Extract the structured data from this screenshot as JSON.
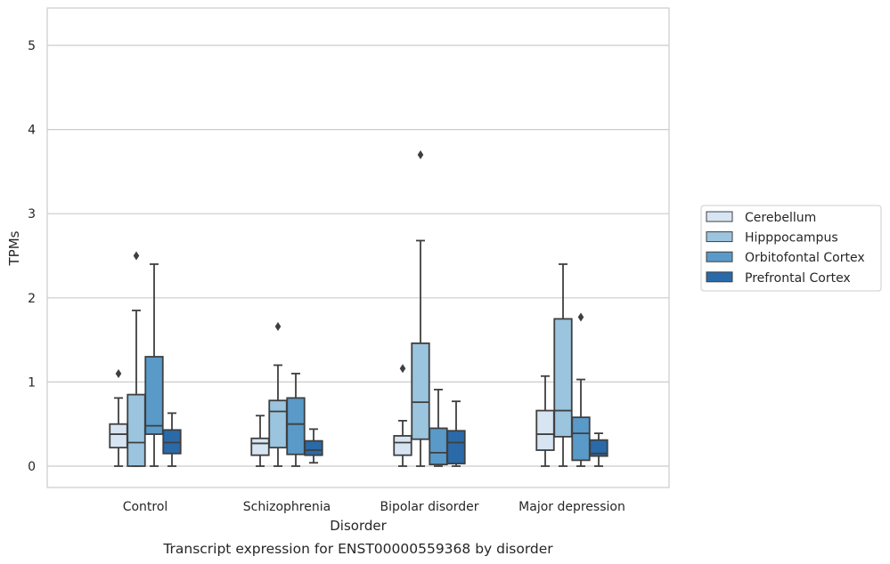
{
  "chart_data": {
    "type": "box",
    "caption": "Transcript expression for ENST00000559368 by disorder",
    "xlabel": "Disorder",
    "ylabel": "TPMs",
    "ylim": [
      -0.25,
      5.45
    ],
    "yticks": [
      0,
      1,
      2,
      3,
      4,
      5
    ],
    "grid": true,
    "legend_position": "right",
    "categories": [
      "Control",
      "Schizophrenia",
      "Bipolar disorder",
      "Major depression"
    ],
    "series": [
      {
        "name": "Cerebellum",
        "color": "#d7e5f3",
        "boxes": [
          {
            "whisker_low": 0.0,
            "q1": 0.22,
            "median": 0.38,
            "q3": 0.5,
            "whisker_high": 0.81,
            "outliers": [
              1.1
            ]
          },
          {
            "whisker_low": 0.0,
            "q1": 0.13,
            "median": 0.27,
            "q3": 0.33,
            "whisker_high": 0.6,
            "outliers": []
          },
          {
            "whisker_low": 0.0,
            "q1": 0.13,
            "median": 0.28,
            "q3": 0.36,
            "whisker_high": 0.54,
            "outliers": [
              1.16
            ]
          },
          {
            "whisker_low": 0.0,
            "q1": 0.19,
            "median": 0.38,
            "q3": 0.66,
            "whisker_high": 1.07,
            "outliers": []
          }
        ]
      },
      {
        "name": "Hipppocampus",
        "color": "#9bc4df",
        "boxes": [
          {
            "whisker_low": 0.0,
            "q1": 0.0,
            "median": 0.28,
            "q3": 0.85,
            "whisker_high": 1.85,
            "outliers": [
              2.5
            ]
          },
          {
            "whisker_low": 0.0,
            "q1": 0.22,
            "median": 0.65,
            "q3": 0.78,
            "whisker_high": 1.2,
            "outliers": [
              1.66
            ]
          },
          {
            "whisker_low": 0.0,
            "q1": 0.32,
            "median": 0.76,
            "q3": 1.46,
            "whisker_high": 2.68,
            "outliers": [
              3.7
            ]
          },
          {
            "whisker_low": 0.0,
            "q1": 0.35,
            "median": 0.66,
            "q3": 1.75,
            "whisker_high": 2.4,
            "outliers": []
          }
        ]
      },
      {
        "name": "Orbitofontal Cortex",
        "color": "#5a9ac9",
        "boxes": [
          {
            "whisker_low": 0.0,
            "q1": 0.38,
            "median": 0.48,
            "q3": 1.3,
            "whisker_high": 2.4,
            "outliers": []
          },
          {
            "whisker_low": 0.0,
            "q1": 0.14,
            "median": 0.5,
            "q3": 0.81,
            "whisker_high": 1.1,
            "outliers": []
          },
          {
            "whisker_low": 0.0,
            "q1": 0.02,
            "median": 0.16,
            "q3": 0.45,
            "whisker_high": 0.91,
            "outliers": []
          },
          {
            "whisker_low": 0.0,
            "q1": 0.07,
            "median": 0.39,
            "q3": 0.58,
            "whisker_high": 1.03,
            "outliers": [
              1.77
            ]
          }
        ]
      },
      {
        "name": "Prefrontal Cortex",
        "color": "#2a6aa9",
        "boxes": [
          {
            "whisker_low": 0.0,
            "q1": 0.15,
            "median": 0.28,
            "q3": 0.43,
            "whisker_high": 0.63,
            "outliers": []
          },
          {
            "whisker_low": 0.04,
            "q1": 0.13,
            "median": 0.19,
            "q3": 0.3,
            "whisker_high": 0.44,
            "outliers": []
          },
          {
            "whisker_low": 0.0,
            "q1": 0.03,
            "median": 0.28,
            "q3": 0.42,
            "whisker_high": 0.77,
            "outliers": []
          },
          {
            "whisker_low": 0.0,
            "q1": 0.12,
            "median": 0.15,
            "q3": 0.31,
            "whisker_high": 0.39,
            "outliers": []
          }
        ]
      }
    ]
  }
}
